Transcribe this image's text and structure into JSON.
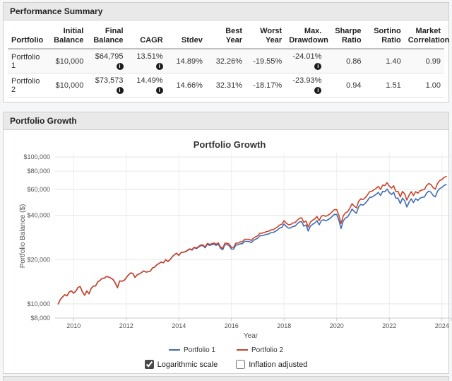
{
  "summary": {
    "title": "Performance Summary",
    "table": {
      "columns": [
        "Portfolio",
        "Initial\nBalance",
        "Final\nBalance",
        "CAGR",
        "Stdev",
        "Best\nYear",
        "Worst\nYear",
        "Max.\nDrawdown",
        "Sharpe\nRatio",
        "Sortino\nRatio",
        "Market\nCorrelation"
      ],
      "rows": [
        {
          "cells": [
            "Portfolio 1",
            "$10,000",
            "$64,795",
            "13.51%",
            "14.89%",
            "32.26%",
            "-19.55%",
            "-24.01%",
            "0.86",
            "1.40",
            "0.99"
          ],
          "info_cols": [
            2,
            3,
            7
          ]
        },
        {
          "cells": [
            "Portfolio 2",
            "$10,000",
            "$73,573",
            "14.49%",
            "14.66%",
            "32.31%",
            "-18.17%",
            "-23.93%",
            "0.94",
            "1.51",
            "1.00"
          ],
          "info_cols": [
            2,
            3,
            7
          ]
        }
      ]
    }
  },
  "growth": {
    "title": "Portfolio Growth"
  },
  "chart_data": {
    "type": "line",
    "title": "Portfolio Growth",
    "xlabel": "Year",
    "ylabel": "Portfolio Balance ($)",
    "legend_position": "bottom",
    "x_axis": {
      "start_year_decimal": 2009.4167,
      "points_per_year": 12,
      "tick_years": [
        2010,
        2012,
        2014,
        2016,
        2018,
        2020,
        2022,
        2024
      ]
    },
    "y_axis": {
      "scale": "log",
      "ticks": [
        {
          "v": 8000,
          "label": "$8,000"
        },
        {
          "v": 10000,
          "label": "$10,000"
        },
        {
          "v": 20000,
          "label": "$20,000"
        },
        {
          "v": 40000,
          "label": "$40,000"
        },
        {
          "v": 60000,
          "label": "$60,000"
        },
        {
          "v": 80000,
          "label": "$80,000"
        },
        {
          "v": 100000,
          "label": "$100,000"
        }
      ]
    },
    "series": [
      {
        "name": "Portfolio 1",
        "color": "#3e6db5",
        "final_balance": 64795,
        "values": [
          10000,
          10756,
          11144,
          11560,
          11345,
          12026,
          12258,
          11817,
          12183,
          12918,
          13122,
          12073,
          11442,
          12244,
          11692,
          12735,
          13219,
          13220,
          14103,
          14437,
          14932,
          14938,
          15380,
          15206,
          14952,
          14648,
          13853,
          12879,
          14287,
          14256,
          14401,
          15046,
          15696,
          16212,
          16110,
          15142,
          15766,
          15985,
          16345,
          16767,
          16457,
          16552,
          16703,
          17568,
          17807,
          18475,
          18832,
          19273,
          19014,
          19982,
          19403,
          20012,
          20933,
          21571,
          22117,
          21330,
          22282,
          22446,
          22590,
          23097,
          23550,
          23201,
          24104,
          23743,
          24297,
          24925,
          24837,
          24067,
          25424,
          24996,
          25210,
          25510,
          24989,
          25488,
          23926,
          23312,
          25252,
          25303,
          24877,
          23618,
          23564,
          25135,
          25208,
          25635,
          25675,
          26595,
          26604,
          26583,
          26072,
          27009,
          27516,
          28009,
          29091,
          29097,
          29366,
          29749,
          29909,
          30493,
          30557,
          31154,
          31847,
          32791,
          33121,
          34982,
          33656,
          32768,
          32858,
          33616,
          33789,
          35010,
          36114,
          36282,
          33766,
          34419,
          31278,
          33750,
          34796,
          35435,
          36833,
          34458,
          36850,
          37342,
          36714,
          37362,
          38133,
          39477,
          40627,
          40569,
          37192,
          32565,
          36702,
          38408,
          39133,
          41298,
          44221,
          42497,
          41323,
          45800,
          47511,
          46983,
          48229,
          50290,
          52921,
          53236,
          54421,
          55659,
          57291,
          54571,
          58336,
          57874,
          60404,
          57222,
          55454,
          57452,
          52388,
          52429,
          48053,
          52430,
          50239,
          45565,
          49205,
          51902,
          48862,
          51878,
          50560,
          52361,
          53123,
          53296,
          56760,
          58523,
          57532,
          54732,
          53527,
          58354,
          60940,
          61900,
          64000,
          64795
        ]
      },
      {
        "name": "Portfolio 2",
        "color": "#cc4228",
        "final_balance": 73573,
        "values": [
          10000,
          10756,
          11144,
          11560,
          11345,
          12026,
          12258,
          11817,
          12183,
          12918,
          13122,
          12073,
          11442,
          12244,
          11692,
          12735,
          13219,
          13220,
          14103,
          14437,
          14932,
          14938,
          15380,
          15206,
          14952,
          14648,
          13853,
          12879,
          14287,
          14256,
          14401,
          15046,
          15696,
          16212,
          16110,
          15142,
          15766,
          15985,
          16345,
          16767,
          16457,
          16552,
          16703,
          17568,
          17807,
          18475,
          18832,
          19273,
          19014,
          19982,
          19403,
          20012,
          20933,
          21571,
          22117,
          21352,
          22328,
          22516,
          22683,
          23216,
          23696,
          23369,
          24304,
          23964,
          24549,
          25209,
          25146,
          24392,
          25794,
          25386,
          25630,
          25961,
          25457,
          25992,
          24425,
          23822,
          25832,
          25910,
          25500,
          24235,
          24204,
          25845,
          25946,
          26413,
          26482,
          27459,
          27497,
          27503,
          27002,
          28001,
          28556,
          29098,
          30253,
          30290,
          30602,
          31033,
          31232,
          31875,
          31974,
          32633,
          33393,
          34418,
          34800,
          36794,
          35436,
          34536,
          34667,
          35503,
          35723,
          37052,
          38260,
          38478,
          35846,
          36577,
          33274,
          35940,
          37093,
          37813,
          39345,
          36846,
          39444,
          40012,
          39380,
          40116,
          40987,
          42475,
          43757,
          43740,
          40140,
          35183,
          39693,
          41582,
          42410,
          44802,
          48023,
          46198,
          44969,
          49893,
          51809,
          51286,
          52701,
          55010,
          57947,
          58353,
          59713,
          61134,
          62992,
          60063,
          64274,
          63830,
          66690,
          63242,
          61351,
          63627,
          58079,
          58184,
          53383,
          58305,
          55927,
          50776,
          54889,
          57957,
          54619,
          58049,
          56633,
          58711,
          59627,
          59883,
          63841,
          65891,
          64843,
          61750,
          60453,
          65973,
          68968,
          70127,
          72581,
          73573
        ]
      }
    ],
    "controls": [
      {
        "label": "Logarithmic scale",
        "checked": true
      },
      {
        "label": "Inflation adjusted",
        "checked": false
      }
    ]
  }
}
